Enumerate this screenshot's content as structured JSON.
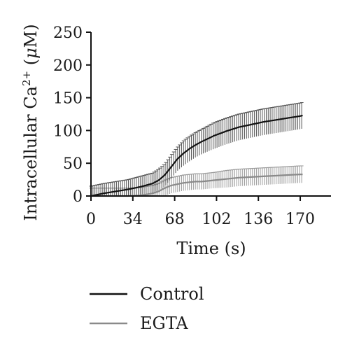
{
  "chart_data": {
    "type": "line",
    "xlabel": "Time (s)",
    "ylabel": {
      "prefix": "Intracellular Ca",
      "superscript": "2+",
      "unit_open": " (",
      "unit_mu": "μ",
      "unit_rest": "M)"
    },
    "xlim": [
      0,
      195
    ],
    "ylim": [
      0,
      250
    ],
    "x_ticks": [
      0,
      34,
      68,
      102,
      136,
      170
    ],
    "y_ticks": [
      0,
      50,
      100,
      150,
      200,
      250
    ],
    "legend_position": "bottom-left",
    "error_bars": true,
    "series": [
      {
        "name": "Control",
        "color": "#111111",
        "error_color": "#555555",
        "x": [
          0,
          10,
          20,
          30,
          40,
          50,
          55,
          60,
          65,
          70,
          75,
          80,
          85,
          90,
          100,
          110,
          120,
          130,
          140,
          150,
          160,
          170,
          172
        ],
        "y": [
          0,
          4,
          7,
          10,
          14,
          19,
          24,
          32,
          44,
          56,
          65,
          72,
          78,
          83,
          92,
          99,
          105,
          109,
          113,
          116,
          119,
          122,
          123
        ],
        "err": [
          15,
          15,
          15,
          15,
          16,
          16,
          17,
          17,
          18,
          18,
          19,
          19,
          19,
          19,
          20,
          20,
          20,
          20,
          20,
          20,
          20,
          20,
          20
        ]
      },
      {
        "name": "EGTA",
        "color": "#8a8a8a",
        "error_color": "#9a9a9a",
        "x": [
          0,
          10,
          20,
          30,
          40,
          50,
          55,
          60,
          65,
          70,
          75,
          80,
          85,
          90,
          100,
          110,
          120,
          130,
          140,
          150,
          160,
          170,
          172
        ],
        "y": [
          0,
          0,
          0,
          0,
          1,
          4,
          7,
          12,
          16,
          18,
          20,
          21,
          22,
          22,
          24,
          26,
          28,
          29,
          30,
          31,
          32,
          33,
          33
        ],
        "err": [
          12,
          12,
          12,
          12,
          12,
          12,
          12,
          12,
          12,
          12,
          12,
          12,
          12,
          12,
          12,
          13,
          13,
          13,
          13,
          13,
          13,
          13,
          13
        ]
      }
    ]
  }
}
